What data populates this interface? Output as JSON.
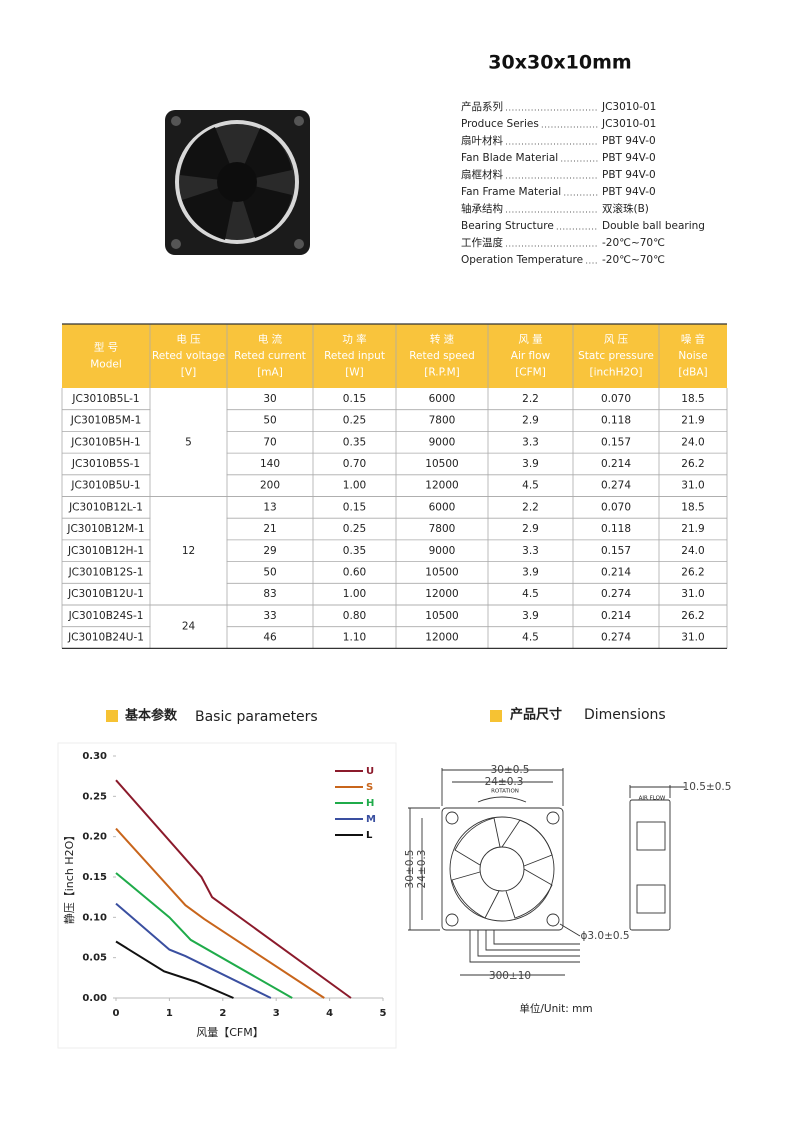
{
  "title": "30x30x10mm",
  "specs": [
    {
      "label": "产品系列",
      "value": "JC3010-01"
    },
    {
      "label": "Produce Series",
      "value": "JC3010-01"
    },
    {
      "label": "扇叶材料",
      "value": "PBT 94V-0"
    },
    {
      "label": "Fan Blade Material",
      "value": "PBT 94V-0"
    },
    {
      "label": "扇框材料",
      "value": "PBT 94V-0"
    },
    {
      "label": "Fan Frame Material",
      "value": "PBT 94V-0"
    },
    {
      "label": "轴承结构",
      "value": "双滚珠(B)"
    },
    {
      "label": "Bearing Structure",
      "value": "Double ball bearing"
    },
    {
      "label": "工作温度",
      "value": "-20℃~70℃"
    },
    {
      "label": "Operation Temperature",
      "value": "-20℃~70℃"
    }
  ],
  "table": {
    "header": [
      [
        "型 号",
        "Model"
      ],
      [
        "电 压",
        "Reted voltage",
        "[V]"
      ],
      [
        "电 流",
        "Reted current",
        "[mA]"
      ],
      [
        "功 率",
        "Reted input",
        "[W]"
      ],
      [
        "转 速",
        "Reted speed",
        "[R.P.M]"
      ],
      [
        "风 量",
        "Air flow",
        "[CFM]"
      ],
      [
        "风 压",
        "Statc pressure",
        "[inchH2O]"
      ],
      [
        "噪 音",
        "Noise",
        "[dBA]"
      ]
    ],
    "groups": [
      {
        "voltage": "5",
        "rows": [
          [
            "JC3010B5L-1",
            "30",
            "0.15",
            "6000",
            "2.2",
            "0.070",
            "18.5"
          ],
          [
            "JC3010B5M-1",
            "50",
            "0.25",
            "7800",
            "2.9",
            "0.118",
            "21.9"
          ],
          [
            "JC3010B5H-1",
            "70",
            "0.35",
            "9000",
            "3.3",
            "0.157",
            "24.0"
          ],
          [
            "JC3010B5S-1",
            "140",
            "0.70",
            "10500",
            "3.9",
            "0.214",
            "26.2"
          ],
          [
            "JC3010B5U-1",
            "200",
            "1.00",
            "12000",
            "4.5",
            "0.274",
            "31.0"
          ]
        ]
      },
      {
        "voltage": "12",
        "rows": [
          [
            "JC3010B12L-1",
            "13",
            "0.15",
            "6000",
            "2.2",
            "0.070",
            "18.5"
          ],
          [
            "JC3010B12M-1",
            "21",
            "0.25",
            "7800",
            "2.9",
            "0.118",
            "21.9"
          ],
          [
            "JC3010B12H-1",
            "29",
            "0.35",
            "9000",
            "3.3",
            "0.157",
            "24.0"
          ],
          [
            "JC3010B12S-1",
            "50",
            "0.60",
            "10500",
            "3.9",
            "0.214",
            "26.2"
          ],
          [
            "JC3010B12U-1",
            "83",
            "1.00",
            "12000",
            "4.5",
            "0.274",
            "31.0"
          ]
        ]
      },
      {
        "voltage": "24",
        "rows": [
          [
            "JC3010B24S-1",
            "33",
            "0.80",
            "10500",
            "3.9",
            "0.214",
            "26.2"
          ],
          [
            "JC3010B24U-1",
            "46",
            "1.10",
            "12000",
            "4.5",
            "0.274",
            "31.0"
          ]
        ]
      }
    ]
  },
  "basic_heading": {
    "zh": "基本参数",
    "en": "Basic parameters"
  },
  "dimensions": {
    "heading_zh": "产品尺寸",
    "heading_en": "Dimensions",
    "width_outer": "30±0.5",
    "width_inner": "24±0.3",
    "rotation": "ROTATION",
    "air_flow": "AIR FLOW",
    "thickness": "10.5±0.5",
    "height_outer": "30±0.5",
    "height_inner": "24±0.3",
    "hole": "ϕ3.0±0.5",
    "wire": "300±10",
    "unit": "单位/Unit: mm"
  },
  "chart_data": {
    "type": "line",
    "x_label": "风量【CFM】",
    "y_label": "静压【inch H2O】",
    "xlim": [
      0,
      5
    ],
    "xticks": [
      0,
      1,
      2,
      3,
      4,
      5
    ],
    "ylim": [
      0,
      0.3
    ],
    "yticks": [
      {
        "value": 0,
        "label": "0.00"
      },
      {
        "value": 0.05,
        "label": "0.05"
      },
      {
        "value": 0.1,
        "label": "0.10"
      },
      {
        "value": 0.15,
        "label": "0.15"
      },
      {
        "value": 0.2,
        "label": "0.20"
      },
      {
        "value": 0.25,
        "label": "0.25"
      },
      {
        "value": 0.3,
        "label": "0.30"
      }
    ],
    "grid": false,
    "legend": "upper right",
    "series": [
      {
        "name": "U",
        "color": "#8b1a2b",
        "x": [
          0,
          1.6,
          1.8,
          4.4
        ],
        "values": [
          0.27,
          0.15,
          0.125,
          0
        ]
      },
      {
        "name": "S",
        "color": "#c8651b",
        "x": [
          0,
          1.3,
          1.65,
          3.9
        ],
        "values": [
          0.21,
          0.115,
          0.098,
          0
        ]
      },
      {
        "name": "H",
        "color": "#1fab4a",
        "x": [
          0,
          1,
          1.4,
          3.3
        ],
        "values": [
          0.155,
          0.1,
          0.072,
          0
        ]
      },
      {
        "name": "M",
        "color": "#3a4fa0",
        "x": [
          0,
          1,
          1.3,
          2.9
        ],
        "values": [
          0.117,
          0.06,
          0.052,
          0
        ]
      },
      {
        "name": "L",
        "color": "#111111",
        "x": [
          0,
          0.9,
          1.5,
          2.2
        ],
        "values": [
          0.07,
          0.033,
          0.02,
          0
        ]
      }
    ]
  }
}
